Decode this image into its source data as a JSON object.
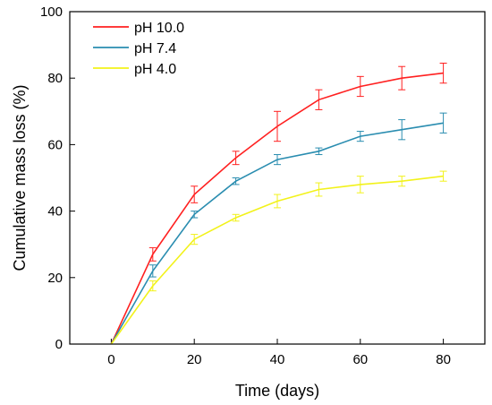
{
  "chart_data": {
    "type": "line",
    "xlabel": "Time (days)",
    "ylabel": "Cumulative mass loss (%)",
    "xlim": [
      -10,
      90
    ],
    "ylim": [
      0,
      100
    ],
    "xticks": [
      0,
      20,
      40,
      60,
      80
    ],
    "yticks": [
      0,
      20,
      40,
      60,
      80,
      100
    ],
    "legend_position": "top-left",
    "grid": false,
    "series": [
      {
        "name": "pH 10.0",
        "color": "#ff2020",
        "x": [
          0,
          10,
          20,
          30,
          40,
          50,
          60,
          70,
          80
        ],
        "y": [
          0,
          27,
          45,
          56,
          65.5,
          73.5,
          77.5,
          80,
          81.5
        ],
        "err": [
          0,
          2.0,
          2.5,
          2.0,
          4.5,
          3.0,
          3.0,
          3.5,
          3.0
        ]
      },
      {
        "name": "pH 7.4",
        "color": "#2a8db0",
        "x": [
          0,
          10,
          20,
          30,
          40,
          50,
          60,
          70,
          80
        ],
        "y": [
          0,
          22,
          39,
          49,
          55.5,
          58,
          62.5,
          64.5,
          66.5
        ],
        "err": [
          0,
          1.8,
          1.0,
          1.0,
          1.5,
          1.0,
          1.5,
          3.0,
          3.0
        ]
      },
      {
        "name": "pH 4.0",
        "color": "#f2f21a",
        "x": [
          0,
          10,
          20,
          30,
          40,
          50,
          60,
          70,
          80
        ],
        "y": [
          0,
          17.5,
          31.5,
          38,
          43,
          46.5,
          48,
          49,
          50.5
        ],
        "err": [
          0,
          1.5,
          1.5,
          1.0,
          2.0,
          2.0,
          2.5,
          1.5,
          1.5
        ]
      }
    ]
  }
}
